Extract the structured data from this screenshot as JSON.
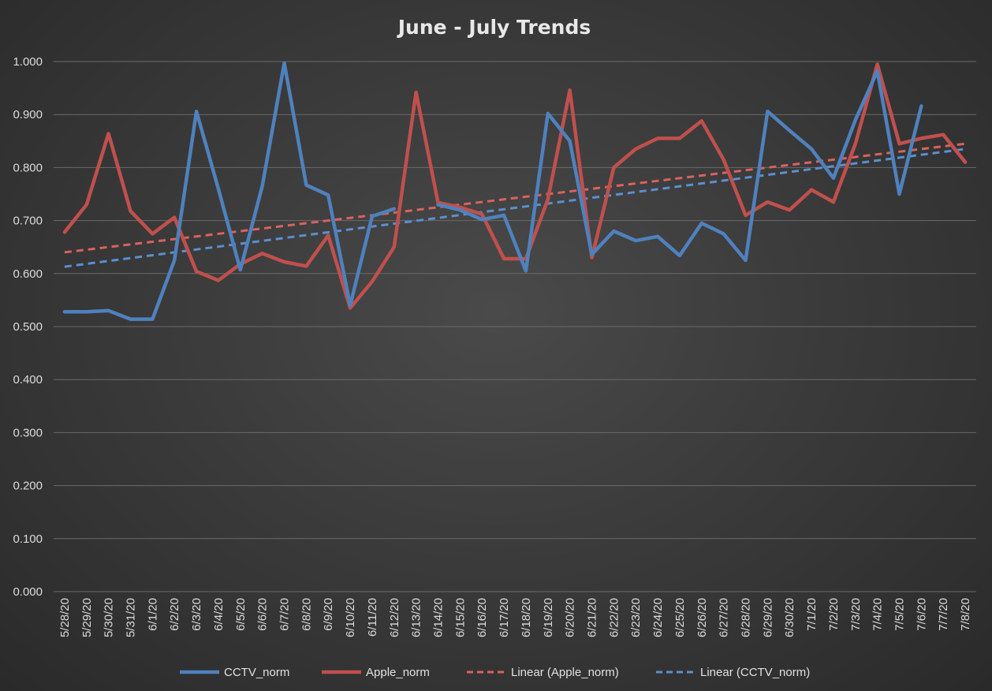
{
  "chart_data": {
    "type": "line",
    "title": "June - July Trends",
    "xlabel": "",
    "ylabel": "",
    "ylim": [
      0,
      1
    ],
    "yticks": [
      "0.000",
      "0.100",
      "0.200",
      "0.300",
      "0.400",
      "0.500",
      "0.600",
      "0.700",
      "0.800",
      "0.900",
      "1.000"
    ],
    "categories": [
      "5/28/20",
      "5/29/20",
      "5/30/20",
      "5/31/20",
      "6/1/20",
      "6/2/20",
      "6/3/20",
      "6/4/20",
      "6/5/20",
      "6/6/20",
      "6/7/20",
      "6/8/20",
      "6/9/20",
      "6/10/20",
      "6/11/20",
      "6/12/20",
      "6/13/20",
      "6/14/20",
      "6/15/20",
      "6/16/20",
      "6/17/20",
      "6/18/20",
      "6/19/20",
      "6/20/20",
      "6/21/20",
      "6/22/20",
      "6/23/20",
      "6/24/20",
      "6/25/20",
      "6/26/20",
      "6/27/20",
      "6/28/20",
      "6/29/20",
      "6/30/20",
      "7/1/20",
      "7/2/20",
      "7/3/20",
      "7/4/20",
      "7/5/20",
      "7/6/20",
      "7/7/20",
      "7/8/20"
    ],
    "grid": true,
    "legend_position": "bottom",
    "series": [
      {
        "name": "CCTV_norm",
        "color": "#4f81bd",
        "style": "solid",
        "values": [
          0.528,
          0.528,
          0.53,
          0.514,
          0.514,
          0.625,
          0.906,
          0.76,
          0.607,
          0.765,
          0.997,
          0.767,
          0.748,
          0.54,
          0.708,
          0.722,
          null,
          0.73,
          0.72,
          0.702,
          0.71,
          0.605,
          0.902,
          0.85,
          0.636,
          0.68,
          0.662,
          0.67,
          0.634,
          0.695,
          0.675,
          0.625,
          0.906,
          0.87,
          0.835,
          0.78,
          0.89,
          0.982,
          0.75,
          0.916,
          null,
          null
        ]
      },
      {
        "name": "Apple_norm",
        "color": "#c0504d",
        "style": "solid",
        "values": [
          0.678,
          0.73,
          0.864,
          0.718,
          0.675,
          0.706,
          0.604,
          0.587,
          0.618,
          0.638,
          0.622,
          0.614,
          0.672,
          0.535,
          0.585,
          0.65,
          0.942,
          0.734,
          0.725,
          0.712,
          0.628,
          0.628,
          0.74,
          0.946,
          0.63,
          0.8,
          0.835,
          0.855,
          0.855,
          0.888,
          0.815,
          0.71,
          0.735,
          0.72,
          0.758,
          0.735,
          0.845,
          0.995,
          0.845,
          0.855,
          0.862,
          0.81
        ]
      },
      {
        "name": "Linear (Apple_norm)",
        "color": "#d9625f",
        "style": "dashed",
        "trend_of": "Apple_norm",
        "endpoints": [
          0.64,
          0.845
        ]
      },
      {
        "name": "Linear (CCTV_norm)",
        "color": "#5b8fd0",
        "style": "dashed",
        "trend_of": "CCTV_norm",
        "endpoints": [
          0.613,
          0.835
        ]
      }
    ]
  }
}
